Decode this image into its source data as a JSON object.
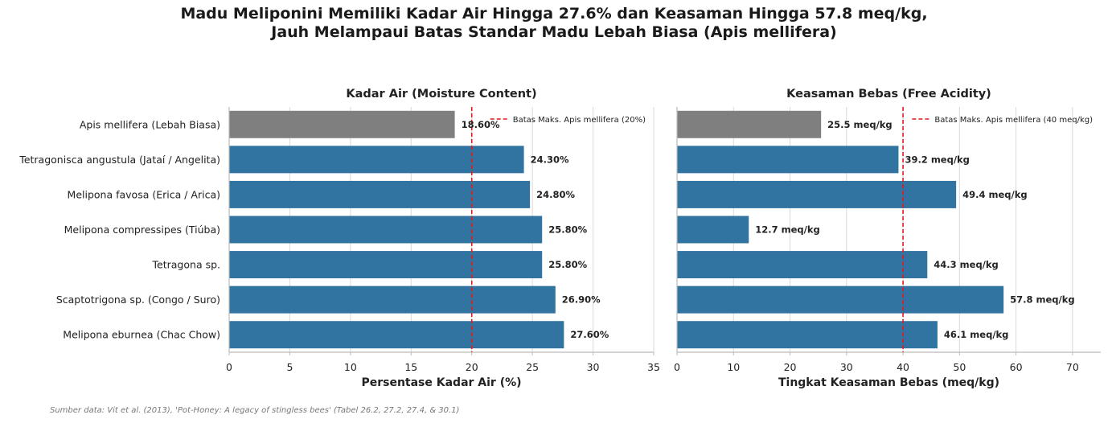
{
  "title_line1": "Madu Meliponini Memiliki Kadar Air Hingga 27.6% dan Keasaman Hingga 57.8 meq/kg,",
  "title_line2": "Jauh Melampaui Batas Standar Madu Lebah Biasa (Apis mellifera)",
  "source": "Sumber data: Vit et al. (2013), 'Pot-Honey: A legacy of stingless bees' (Tabel 26.2, 27.2, 27.4, & 30.1)",
  "colors": {
    "reference": "#7f7f7f",
    "meliponini": "#3274a1",
    "limit": "#e31a1c",
    "grid": "#d9d9d9",
    "axis": "#bbbbbb"
  },
  "chart_data": [
    {
      "type": "bar",
      "orientation": "horizontal",
      "title": "Kadar Air (Moisture Content)",
      "xlabel": "Persentase Kadar Air (%)",
      "ylabel": "",
      "xlim": [
        0,
        35
      ],
      "xticks": [
        0,
        5,
        10,
        15,
        20,
        25,
        30,
        35
      ],
      "grid": "vertical",
      "categories": [
        "Apis mellifera (Lebah Biasa)",
        "Tetragonisca angustula (Jataí / Angelita)",
        "Melipona favosa (Erica / Arica)",
        "Melipona compressipes (Tiúba)",
        "Tetragona sp.",
        "Scaptotrigona sp. (Congo / Suro)",
        "Melipona eburnea (Chac Chow)"
      ],
      "values": [
        18.6,
        24.3,
        24.8,
        25.8,
        25.8,
        26.9,
        27.6
      ],
      "data_labels": [
        "18.60%",
        "24.30%",
        "24.80%",
        "25.80%",
        "25.80%",
        "26.90%",
        "27.60%"
      ],
      "reference_line": {
        "value": 20,
        "label": "Batas Maks. Apis mellifera (20%)"
      },
      "legend": "top-right"
    },
    {
      "type": "bar",
      "orientation": "horizontal",
      "title": "Keasaman Bebas (Free Acidity)",
      "xlabel": "Tingkat Keasaman Bebas (meq/kg)",
      "ylabel": "",
      "xlim": [
        0,
        75
      ],
      "xticks": [
        0,
        10,
        20,
        30,
        40,
        50,
        60,
        70
      ],
      "grid": "vertical",
      "categories": [
        "Apis mellifera (Lebah Biasa)",
        "Tetragonisca angustula (Jataí / Angelita)",
        "Melipona favosa (Erica / Arica)",
        "Melipona compressipes (Tiúba)",
        "Tetragona sp.",
        "Scaptotrigona sp. (Congo / Suro)",
        "Melipona eburnea (Chac Chow)"
      ],
      "values": [
        25.5,
        39.2,
        49.4,
        12.7,
        44.3,
        57.8,
        46.1
      ],
      "data_labels": [
        "25.5 meq/kg",
        "39.2 meq/kg",
        "49.4 meq/kg",
        "12.7 meq/kg",
        "44.3 meq/kg",
        "57.8 meq/kg",
        "46.1 meq/kg"
      ],
      "reference_line": {
        "value": 40,
        "label": "Batas Maks. Apis mellifera (40 meq/kg)"
      },
      "legend": "top-right"
    }
  ]
}
